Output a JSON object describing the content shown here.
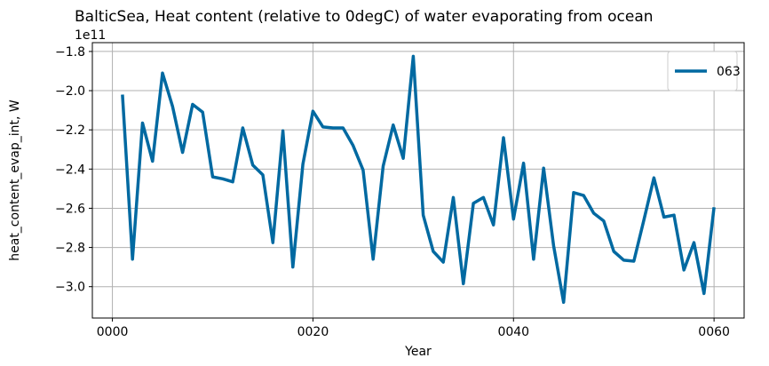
{
  "chart_data": {
    "type": "line",
    "title": "BalticSea, Heat content (relative to 0degC) of water evaporating from ocean",
    "xlabel": "Year",
    "ylabel": "heat_content_evap_int, W",
    "y_offset_label": "1e11",
    "xlim": [
      -2,
      63
    ],
    "ylim": [
      -3.16,
      -1.755
    ],
    "x_ticks": [
      0,
      20,
      40,
      60
    ],
    "x_tick_labels": [
      "0000",
      "0020",
      "0040",
      "0060"
    ],
    "y_ticks": [
      -3.0,
      -2.8,
      -2.6,
      -2.4,
      -2.2,
      -2.0,
      -1.8
    ],
    "y_tick_labels": [
      "−3.0",
      "−2.8",
      "−2.6",
      "−2.4",
      "−2.2",
      "−2.0",
      "−1.8"
    ],
    "grid": true,
    "legend_position": "top-right",
    "series": [
      {
        "name": "063",
        "color": "#0069a1",
        "x": [
          1,
          2,
          3,
          4,
          5,
          6,
          7,
          8,
          9,
          10,
          11,
          12,
          13,
          14,
          15,
          16,
          17,
          18,
          19,
          20,
          21,
          22,
          23,
          24,
          25,
          26,
          27,
          28,
          29,
          30,
          31,
          32,
          33,
          34,
          35,
          36,
          37,
          38,
          39,
          40,
          41,
          42,
          43,
          44,
          45,
          46,
          47,
          48,
          49,
          50,
          51,
          52,
          53,
          54,
          55,
          56,
          57,
          58,
          59,
          60
        ],
        "values": [
          -2.02,
          -2.86,
          -2.165,
          -2.36,
          -1.91,
          -2.08,
          -2.315,
          -2.07,
          -2.11,
          -2.44,
          -2.45,
          -2.465,
          -2.19,
          -2.38,
          -2.43,
          -2.775,
          -2.205,
          -2.9,
          -2.375,
          -2.105,
          -2.185,
          -2.19,
          -2.19,
          -2.28,
          -2.405,
          -2.86,
          -2.385,
          -2.175,
          -2.345,
          -1.825,
          -2.635,
          -2.82,
          -2.875,
          -2.545,
          -2.985,
          -2.575,
          -2.545,
          -2.685,
          -2.24,
          -2.655,
          -2.37,
          -2.86,
          -2.395,
          -2.79,
          -3.08,
          -2.52,
          -2.535,
          -2.625,
          -2.665,
          -2.82,
          -2.865,
          -2.87,
          -2.66,
          -2.445,
          -2.645,
          -2.635,
          -2.915,
          -2.775,
          -3.035,
          -2.595
        ]
      }
    ]
  }
}
